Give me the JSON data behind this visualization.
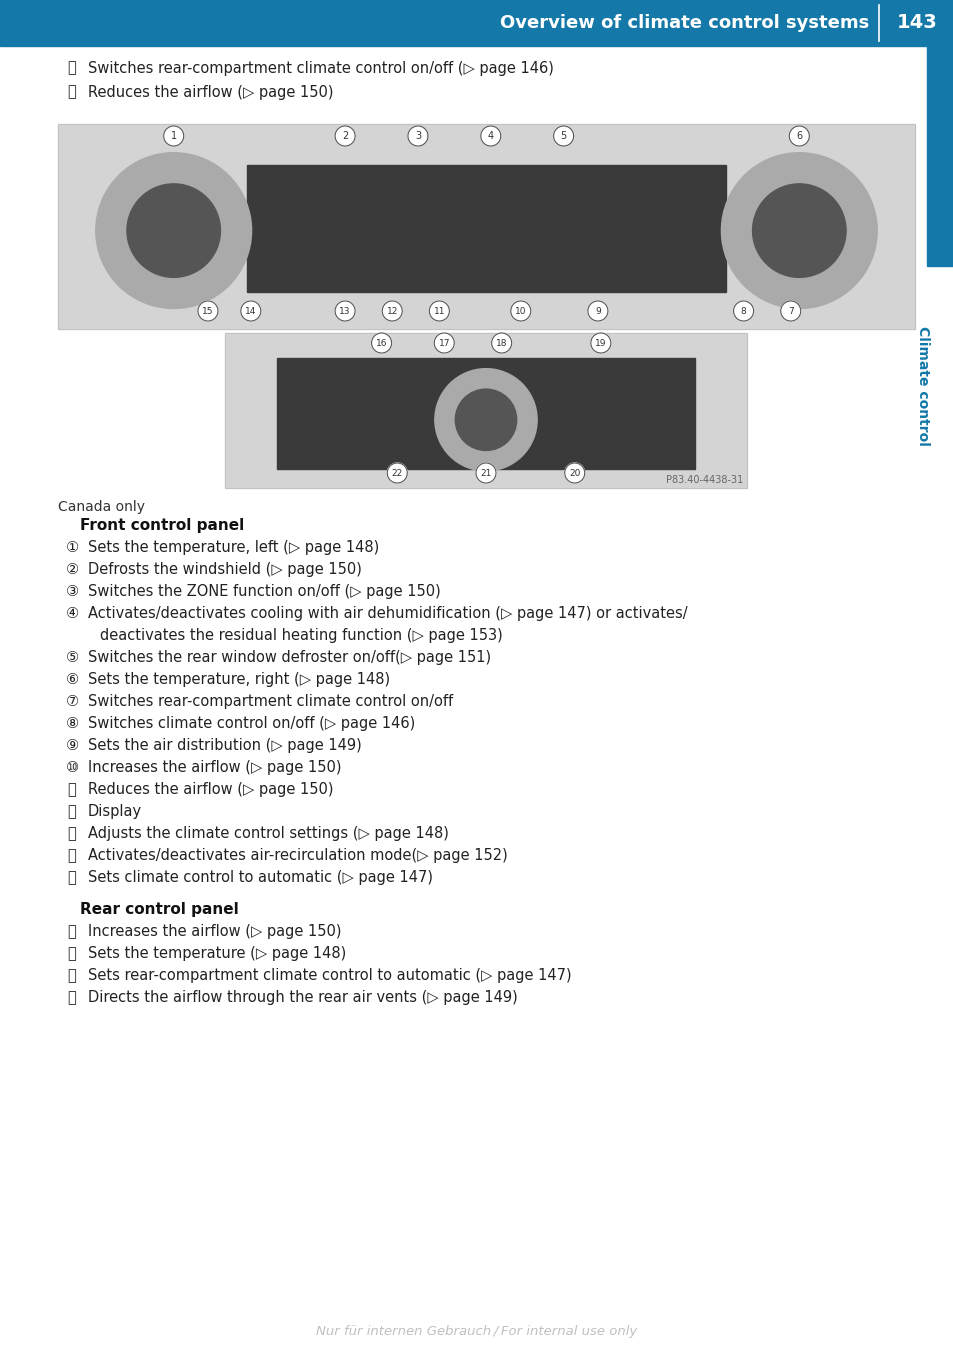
{
  "header_bg": "#1479a8",
  "header_text": "Overview of climate control systems",
  "header_page": "143",
  "sidebar_color": "#1479a8",
  "sidebar_text": "Climate control",
  "page_bg": "#ffffff",
  "top_bullets": [
    {
      "num": "⑵",
      "text": "Switches rear-compartment climate control on/off (▷ page 146)"
    },
    {
      "num": "⑶",
      "text": "Reduces the airflow (▷ page 150)"
    }
  ],
  "canada_only": "Canada only",
  "front_panel_title": "Front control panel",
  "front_items": [
    {
      "num": "①",
      "text": "Sets the temperature, left (▷ page 148)",
      "extra": ""
    },
    {
      "num": "②",
      "text": "Defrosts the windshield (▷ page 150)",
      "extra": ""
    },
    {
      "num": "③",
      "text": "Switches the ZONE function on/off (▷ page 150)",
      "extra": ""
    },
    {
      "num": "④",
      "text": "Activates/deactivates cooling with air dehumidification (▷ page 147) or activates/",
      "extra": "deactivates the residual heating function (▷ page 153)"
    },
    {
      "num": "⑤",
      "text": "Switches the rear window defroster on/off(▷ page 151)",
      "extra": ""
    },
    {
      "num": "⑥",
      "text": "Sets the temperature, right (▷ page 148)",
      "extra": ""
    },
    {
      "num": "⑦",
      "text": "Switches rear-compartment climate control on/off",
      "extra": ""
    },
    {
      "num": "⑧",
      "text": "Switches climate control on/off (▷ page 146)",
      "extra": ""
    },
    {
      "num": "⑨",
      "text": "Sets the air distribution (▷ page 149)",
      "extra": ""
    },
    {
      "num": "⑩",
      "text": "Increases the airflow (▷ page 150)",
      "extra": ""
    },
    {
      "num": "⑪",
      "text": "Reduces the airflow (▷ page 150)",
      "extra": ""
    },
    {
      "num": "⑫",
      "text": "Display",
      "extra": ""
    },
    {
      "num": "⑬",
      "text": "Adjusts the climate control settings (▷ page 148)",
      "extra": ""
    },
    {
      "num": "⑭",
      "text": "Activates/deactivates air-recirculation mode(▷ page 152)",
      "extra": ""
    },
    {
      "num": "⑮",
      "text": "Sets climate control to automatic (▷ page 147)",
      "extra": ""
    }
  ],
  "rear_panel_title": "Rear control panel",
  "rear_items": [
    {
      "num": "⑯",
      "text": "Increases the airflow (▷ page 150)"
    },
    {
      "num": "⑰",
      "text": "Sets the temperature (▷ page 148)"
    },
    {
      "num": "⑱",
      "text": "Sets rear-compartment climate control to automatic (▷ page 147)"
    },
    {
      "num": "⑲",
      "text": "Directs the airflow through the rear air vents (▷ page 149)"
    }
  ],
  "img_ref": "P83.40-4438-31",
  "watermark": "Nur für internen Gebrauch / For internal use only",
  "body_font_size": 10.5,
  "circle_font_size": 10.5,
  "title_font_size": 11,
  "header_font_size": 13
}
